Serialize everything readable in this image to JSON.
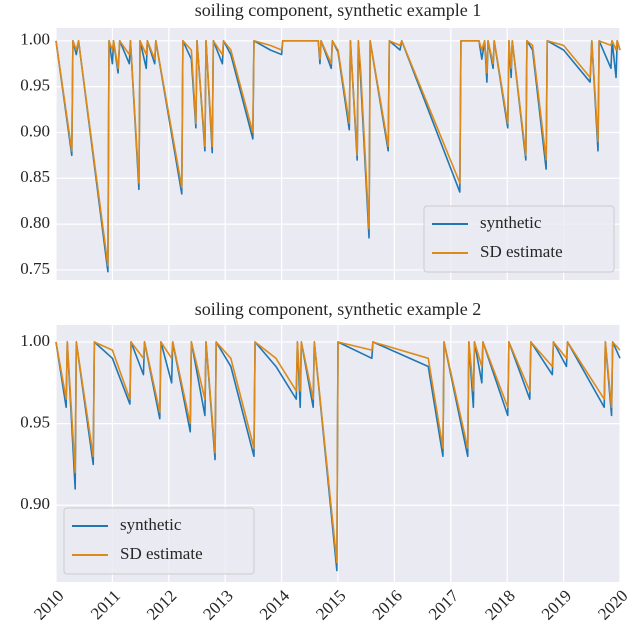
{
  "chart_data": [
    {
      "type": "line",
      "title": "soiling component, synthetic example 1",
      "x": [
        2010.0,
        2010.28,
        2010.3,
        2010.36,
        2010.4,
        2010.92,
        2010.94,
        2011.0,
        2011.02,
        2011.1,
        2011.13,
        2011.3,
        2011.32,
        2011.47,
        2011.49,
        2011.6,
        2011.62,
        2011.75,
        2011.77,
        2012.23,
        2012.25,
        2012.4,
        2012.48,
        2012.5,
        2012.64,
        2012.66,
        2012.77,
        2012.79,
        2012.95,
        2012.97,
        2013.1,
        2013.49,
        2013.51,
        2013.8,
        2014.0,
        2014.02,
        2014.65,
        2014.68,
        2014.7,
        2014.88,
        2014.9,
        2015.0,
        2015.2,
        2015.22,
        2015.34,
        2015.36,
        2015.4,
        2015.55,
        2015.57,
        2015.89,
        2015.91,
        2016.1,
        2016.13,
        2017.16,
        2017.18,
        2017.5,
        2017.55,
        2017.6,
        2017.64,
        2017.66,
        2017.75,
        2017.77,
        2018.01,
        2018.03,
        2018.07,
        2018.09,
        2018.33,
        2018.35,
        2018.45,
        2018.69,
        2018.71,
        2019.0,
        2019.47,
        2019.5,
        2019.61,
        2019.63,
        2019.84,
        2019.86,
        2019.93,
        2019.95,
        2020.0
      ],
      "series": [
        {
          "name": "synthetic",
          "color": "#1f77b4",
          "values": [
            1,
            0.875,
            1,
            0.985,
            1,
            0.748,
            1,
            0.975,
            1,
            0.965,
            1,
            0.975,
            1,
            0.838,
            1,
            0.97,
            1,
            0.975,
            1,
            0.833,
            1,
            0.98,
            0.905,
            1,
            0.88,
            1,
            0.878,
            1,
            0.975,
            1,
            0.985,
            0.893,
            1,
            0.99,
            0.985,
            1,
            1,
            0.975,
            1,
            0.97,
            1,
            0.988,
            0.903,
            1,
            0.87,
            1,
            0.96,
            0.785,
            1,
            0.88,
            1,
            0.99,
            1,
            0.835,
            1,
            1,
            0.98,
            1,
            0.955,
            1,
            0.97,
            1,
            0.905,
            1,
            0.96,
            1,
            0.87,
            1,
            0.99,
            0.86,
            1,
            0.99,
            0.955,
            1,
            0.88,
            1,
            0.97,
            1,
            0.96,
            1,
            0.99
          ]
        },
        {
          "name": "SD estimate",
          "color": "#dd8a1a",
          "values": [
            1,
            0.88,
            1,
            0.99,
            1,
            0.755,
            1,
            0.99,
            1,
            0.97,
            1,
            0.985,
            1,
            0.845,
            1,
            0.985,
            1,
            0.98,
            1,
            0.84,
            1,
            0.99,
            0.91,
            1,
            0.885,
            1,
            0.885,
            1,
            0.985,
            1,
            0.99,
            0.9,
            1,
            0.995,
            0.99,
            1,
            1,
            0.98,
            1,
            0.975,
            1,
            0.99,
            0.91,
            1,
            0.875,
            1,
            0.97,
            0.795,
            1,
            0.885,
            1,
            0.995,
            1,
            0.845,
            1,
            1,
            0.99,
            1,
            0.965,
            1,
            0.975,
            1,
            0.91,
            1,
            0.97,
            1,
            0.875,
            1,
            0.995,
            0.87,
            1,
            0.995,
            0.96,
            1,
            0.89,
            1,
            0.995,
            1,
            0.99,
            1,
            0.99
          ]
        }
      ],
      "xlim": [
        2010,
        2020
      ],
      "xticks": [
        2010,
        2011,
        2012,
        2013,
        2014,
        2015,
        2016,
        2017,
        2018,
        2019,
        2020
      ],
      "ylim": [
        0.739,
        1.014
      ],
      "yticks": [
        0.75,
        {
          "value": 0.8,
          "label": "0.80"
        },
        0.85,
        {
          "value": 0.9,
          "label": "0.90"
        },
        0.95,
        {
          "value": 1,
          "label": "1.00"
        }
      ],
      "grid": true,
      "legend": "lower right"
    },
    {
      "type": "line",
      "title": "soiling component, synthetic example 2",
      "x": [
        2010.0,
        2010.18,
        2010.2,
        2010.34,
        2010.36,
        2010.66,
        2010.68,
        2011.0,
        2011.31,
        2011.33,
        2011.55,
        2011.57,
        2011.84,
        2011.86,
        2012.05,
        2012.07,
        2012.38,
        2012.4,
        2012.64,
        2012.66,
        2012.82,
        2012.84,
        2013.1,
        2013.51,
        2013.53,
        2013.9,
        2014.26,
        2014.28,
        2014.33,
        2014.35,
        2014.56,
        2014.58,
        2014.98,
        2015.0,
        2015.6,
        2015.62,
        2016.6,
        2016.86,
        2016.88,
        2017.3,
        2017.32,
        2017.4,
        2017.42,
        2017.55,
        2017.57,
        2018.01,
        2018.03,
        2018.4,
        2018.42,
        2018.8,
        2018.82,
        2019.05,
        2019.07,
        2019.72,
        2019.74,
        2019.85,
        2019.87,
        2020.0
      ],
      "series": [
        {
          "name": "synthetic",
          "color": "#1f77b4",
          "values": [
            1,
            0.96,
            1,
            0.91,
            1,
            0.925,
            1,
            0.99,
            0.962,
            1,
            0.98,
            1,
            0.953,
            1,
            0.975,
            1,
            0.945,
            1,
            0.955,
            1,
            0.928,
            1,
            0.985,
            0.93,
            1,
            0.985,
            0.965,
            1,
            0.96,
            1,
            0.96,
            1,
            0.86,
            1,
            0.99,
            1,
            0.985,
            0.93,
            1,
            0.93,
            1,
            0.96,
            1,
            0.975,
            1,
            0.955,
            1,
            0.965,
            1,
            0.98,
            1,
            0.985,
            1,
            0.96,
            1,
            0.955,
            1,
            0.99
          ]
        },
        {
          "name": "SD estimate",
          "color": "#dd8a1a",
          "values": [
            1,
            0.965,
            1,
            0.92,
            1,
            0.93,
            1,
            0.995,
            0.965,
            1,
            0.99,
            1,
            0.957,
            1,
            0.99,
            1,
            0.95,
            1,
            0.965,
            1,
            0.932,
            1,
            0.99,
            0.935,
            1,
            0.99,
            0.97,
            1,
            0.97,
            1,
            0.965,
            1,
            0.865,
            1,
            0.995,
            1,
            0.99,
            0.935,
            1,
            0.935,
            1,
            0.97,
            1,
            0.985,
            1,
            0.96,
            1,
            0.97,
            1,
            0.985,
            1,
            0.99,
            1,
            0.965,
            1,
            0.96,
            1,
            0.995
          ]
        }
      ],
      "xlim": [
        2010,
        2020
      ],
      "xticks": [
        2010,
        2011,
        2012,
        2013,
        2014,
        2015,
        2016,
        2017,
        2018,
        2019,
        2020
      ],
      "ylim": [
        0.853,
        1.0104
      ],
      "yticks": [
        {
          "value": 0.9,
          "label": "0.90"
        },
        0.95,
        {
          "value": 1,
          "label": "1.00"
        }
      ],
      "grid": true,
      "legend": "lower left"
    }
  ]
}
